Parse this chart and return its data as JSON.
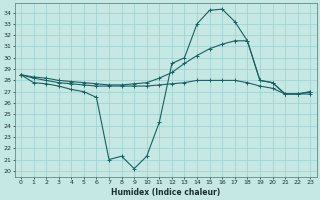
{
  "xlabel": "Humidex (Indice chaleur)",
  "ylabel": "",
  "background_color": "#c5e8e5",
  "grid_color": "#9ecece",
  "line_color": "#1a6060",
  "xlim": [
    -0.5,
    23.5
  ],
  "ylim": [
    19.5,
    34.8
  ],
  "yticks": [
    20,
    21,
    22,
    23,
    24,
    25,
    26,
    27,
    28,
    29,
    30,
    31,
    32,
    33,
    34
  ],
  "xticks": [
    0,
    1,
    2,
    3,
    4,
    5,
    6,
    7,
    8,
    9,
    10,
    11,
    12,
    13,
    14,
    15,
    16,
    17,
    18,
    19,
    20,
    21,
    22,
    23
  ],
  "series": [
    {
      "x": [
        0,
        1,
        2,
        3,
        4,
        5,
        6,
        7,
        8,
        9,
        10,
        11,
        12,
        13,
        14,
        15,
        16,
        17,
        18,
        19,
        20,
        21,
        22,
        23
      ],
      "y": [
        28.5,
        27.8,
        27.7,
        27.5,
        27.2,
        27.0,
        26.5,
        21.0,
        21.3,
        20.2,
        21.3,
        24.3,
        29.5,
        30.0,
        33.0,
        34.2,
        34.3,
        33.2,
        31.5,
        28.0,
        27.8,
        26.8,
        26.8,
        27.0
      ]
    },
    {
      "x": [
        0,
        1,
        2,
        3,
        4,
        5,
        6,
        7,
        8,
        9,
        10,
        11,
        12,
        13,
        14,
        15,
        16,
        17,
        18,
        19,
        20,
        21,
        22,
        23
      ],
      "y": [
        28.5,
        28.2,
        28.0,
        27.8,
        27.7,
        27.6,
        27.5,
        27.5,
        27.5,
        27.5,
        27.5,
        27.6,
        27.7,
        27.8,
        28.0,
        28.0,
        28.0,
        28.0,
        27.8,
        27.5,
        27.3,
        26.8,
        26.8,
        26.8
      ]
    },
    {
      "x": [
        0,
        1,
        2,
        3,
        4,
        5,
        6,
        7,
        8,
        9,
        10,
        11,
        12,
        13,
        14,
        15,
        16,
        17,
        18,
        19,
        20,
        21,
        22,
        23
      ],
      "y": [
        28.5,
        28.3,
        28.2,
        28.0,
        27.9,
        27.8,
        27.7,
        27.6,
        27.6,
        27.7,
        27.8,
        28.2,
        28.7,
        29.5,
        30.2,
        30.8,
        31.2,
        31.5,
        31.5,
        28.0,
        27.8,
        26.8,
        26.8,
        27.0
      ]
    }
  ]
}
